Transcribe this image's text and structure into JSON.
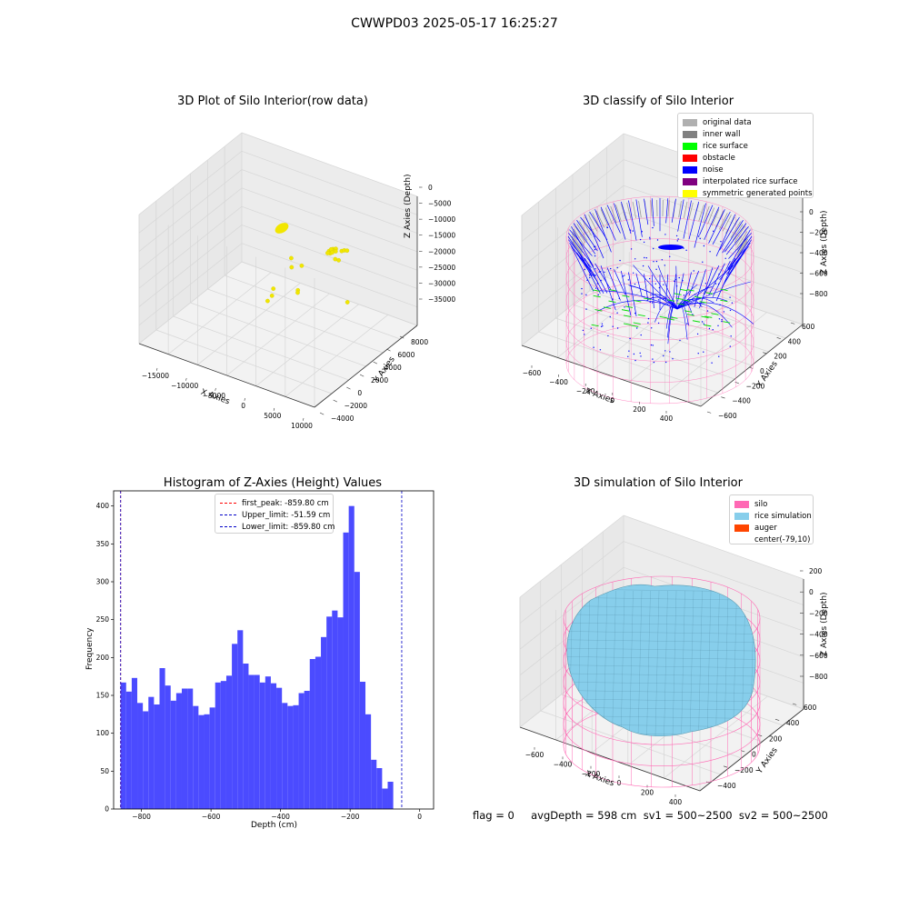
{
  "suptitle": "CWWPD03 2025-05-17 16:25:27",
  "footer_text": "flag = 0     avgDepth = 598 cm  sv1 = 500~2500  sv2 = 500~2500",
  "chart_data": [
    {
      "id": "raw",
      "type": "scatter",
      "title": "3D Plot of Silo Interior(row data)",
      "xlabel": "X Axies",
      "ylabel": "Y Axies",
      "zlabel": "Z Axies (Depth)",
      "x_ticks": [
        "−15000",
        "−10000",
        "−5000",
        "0",
        "5000",
        "10000"
      ],
      "y_ticks": [
        "−4000",
        "−2000",
        "0",
        "2000",
        "4000",
        "6000",
        "8000"
      ],
      "z_ticks": [
        "0",
        "−5000",
        "−10000",
        "−15000",
        "−20000",
        "−25000",
        "−30000",
        "−35000"
      ],
      "xlim": [
        -17000,
        10500
      ],
      "ylim": [
        -4200,
        9200
      ],
      "zlim": [
        -37000,
        2000
      ],
      "grid": true,
      "point_color": "#f2e600",
      "points": [
        [
          2800,
          4100,
          -10500
        ],
        [
          3000,
          4200,
          -10200
        ],
        [
          3200,
          4300,
          -10000
        ],
        [
          3400,
          4200,
          -10100
        ],
        [
          3100,
          4000,
          -10800
        ],
        [
          2900,
          4300,
          -10300
        ],
        [
          3300,
          4100,
          -10600
        ],
        [
          3500,
          4400,
          -9900
        ],
        [
          2700,
          4000,
          -11000
        ],
        [
          3600,
          4300,
          -10400
        ],
        [
          4300,
          4500,
          -10200
        ],
        [
          4700,
          4500,
          -9700
        ],
        [
          4900,
          4700,
          -10000
        ],
        [
          3900,
          4000,
          -12000
        ],
        [
          4200,
          4200,
          -12500
        ],
        [
          -1200,
          2500,
          -12500
        ],
        [
          -1500,
          2800,
          -16000
        ],
        [
          -400,
          3200,
          -15500
        ],
        [
          -2800,
          1500,
          -21000
        ],
        [
          -2900,
          1400,
          -23000
        ],
        [
          -3100,
          1000,
          -24000
        ],
        [
          -400,
          2700,
          -22000
        ],
        [
          -300,
          2600,
          -22500
        ],
        [
          7000,
          3000,
          -21000
        ]
      ]
    },
    {
      "id": "classify",
      "type": "scatter",
      "title": "3D classify of Silo Interior",
      "xlabel": "X Axies",
      "ylabel": "Y Axies",
      "zlabel": "Z Axies (Depth)",
      "x_ticks": [
        "−600",
        "−400",
        "−200",
        "0",
        "200",
        "400"
      ],
      "y_ticks": [
        "−600",
        "−400",
        "−200",
        "0",
        "200",
        "400",
        "600"
      ],
      "z_ticks": [
        "0",
        "−200",
        "−400",
        "−600",
        "−800"
      ],
      "grid": true,
      "legend_placement": "top-right",
      "legend": [
        {
          "label": "original data",
          "color": "#b0b0b0"
        },
        {
          "label": "inner wall",
          "color": "#808080"
        },
        {
          "label": "rice surface",
          "color": "#00ff00"
        },
        {
          "label": "obstacle",
          "color": "#ff0000"
        },
        {
          "label": "noise",
          "color": "#0000ff"
        },
        {
          "label": "interpolated rice surface",
          "color": "#800080"
        },
        {
          "label": "symmetric generated points",
          "color": "#ffff00"
        }
      ],
      "wireframe_color": "#ff69b4"
    },
    {
      "id": "hist",
      "type": "bar",
      "title": "Histogram of Z-Axies (Height) Values",
      "xlabel": "Depth (cm)",
      "ylabel": "Frequency",
      "xlim": [
        -880,
        40
      ],
      "ylim": [
        0,
        420
      ],
      "x_ticks": [
        {
          "v": -800,
          "t": "−800"
        },
        {
          "v": -600,
          "t": "−600"
        },
        {
          "v": -400,
          "t": "−400"
        },
        {
          "v": -200,
          "t": "−200"
        },
        {
          "v": 0,
          "t": "0"
        }
      ],
      "y_ticks": [
        0,
        50,
        100,
        150,
        200,
        250,
        300,
        350,
        400
      ],
      "bar_color": "#4b4bff",
      "bin_start": -860,
      "bin_width": 16,
      "values": [
        167,
        155,
        173,
        140,
        129,
        148,
        138,
        186,
        163,
        143,
        153,
        159,
        159,
        136,
        124,
        125,
        134,
        167,
        169,
        176,
        218,
        236,
        192,
        177,
        177,
        167,
        175,
        166,
        160,
        140,
        136,
        137,
        153,
        156,
        198,
        201,
        227,
        254,
        262,
        253,
        365,
        400,
        313,
        168,
        125,
        65,
        54,
        27,
        36
      ],
      "legend_placement": "top-center",
      "vlines": [
        {
          "label": "first_peak: -859.80 cm",
          "value": -859.8,
          "color": "#ff0000"
        },
        {
          "label": "Upper_limit: -51.59 cm",
          "value": -51.59,
          "color": "#0000c8"
        },
        {
          "label": "Lower_limit: -859.80 cm",
          "value": -859.8,
          "color": "#0000c8"
        }
      ]
    },
    {
      "id": "sim",
      "type": "surface",
      "title": "3D simulation of Silo Interior",
      "xlabel": "X Axies",
      "ylabel": "Y Axies",
      "zlabel": "Z Axies (Depth)",
      "x_ticks": [
        "−600",
        "−400",
        "−200",
        "0",
        "200",
        "400"
      ],
      "y_ticks": [
        "−400",
        "−200",
        "0",
        "200",
        "400",
        "600"
      ],
      "z_ticks": [
        "200",
        "0",
        "−200",
        "−400",
        "−600",
        "−800"
      ],
      "grid": true,
      "legend_placement": "top-right",
      "legend": [
        {
          "label": "silo",
          "color": "#ff69b4"
        },
        {
          "label": "rice simulation",
          "color": "#87ceeb"
        },
        {
          "label": "auger",
          "color": "#ff4500"
        },
        {
          "label": "center(-79,10)",
          "color": "#ffffff"
        }
      ]
    }
  ]
}
